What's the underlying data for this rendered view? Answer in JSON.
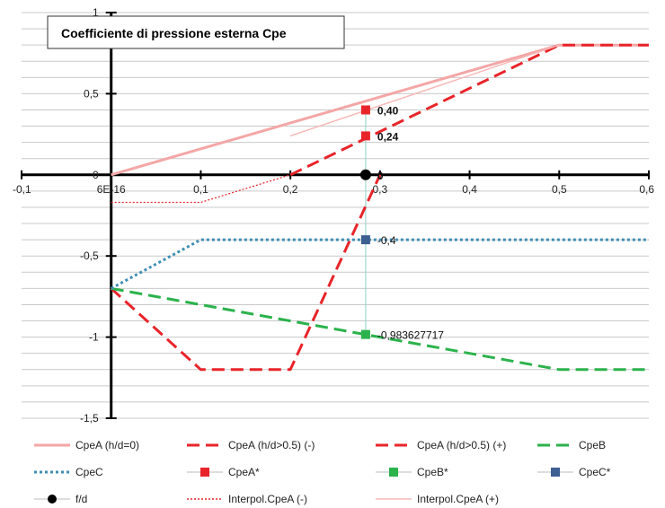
{
  "chart_data": {
    "type": "line",
    "title": "Coefficiente  di pressione esterna Cpe",
    "xlim": [
      -0.1,
      0.6
    ],
    "ylim": [
      -1.5,
      1
    ],
    "x_ticks": [
      {
        "value": -0.1,
        "label": "-0,1"
      },
      {
        "value": 0,
        "label": "6E-16"
      },
      {
        "value": 0.1,
        "label": "0,1"
      },
      {
        "value": 0.2,
        "label": "0,2"
      },
      {
        "value": 0.3,
        "label": "0,3"
      },
      {
        "value": 0.4,
        "label": "0,4"
      },
      {
        "value": 0.5,
        "label": "0,5"
      },
      {
        "value": 0.6,
        "label": "0,6"
      }
    ],
    "y_ticks": [
      {
        "value": 1,
        "label": "1"
      },
      {
        "value": 0.5,
        "label": "0,5"
      },
      {
        "value": 0,
        "label": "0"
      },
      {
        "value": -0.5,
        "label": "-0,5"
      },
      {
        "value": -1,
        "label": "-1"
      },
      {
        "value": -1.5,
        "label": "-1,5"
      }
    ],
    "grid": "horizontal",
    "legend_position": "bottom",
    "series": [
      {
        "name": "CpeA (h/d=0)",
        "style": "solid",
        "color": "#f4a6a6",
        "width": 3,
        "x": [
          0,
          0.5,
          0.6
        ],
        "y": [
          0,
          0.8,
          0.8
        ]
      },
      {
        "name": "CpeA (h/d>0.5) (-)",
        "style": "dashed",
        "color": "#e8242a",
        "width": 3,
        "x": [
          0,
          0.1,
          0.2,
          0.3
        ],
        "y": [
          -0.7,
          -1.2,
          -1.2,
          0
        ]
      },
      {
        "name": "CpeA (h/d>0.5) (+)",
        "style": "dashed",
        "color": "#e8242a",
        "width": 3,
        "x": [
          0.2,
          0.5,
          0.6
        ],
        "y": [
          0,
          0.8,
          0.8
        ]
      },
      {
        "name": "CpeB",
        "style": "dashed",
        "color": "#2bb24c",
        "width": 3,
        "x": [
          0,
          0.5,
          0.6
        ],
        "y": [
          -0.7,
          -1.2,
          -1.2
        ]
      },
      {
        "name": "CpeC",
        "style": "dotted",
        "color": "#3f8fb4",
        "width": 3,
        "x": [
          0,
          0.1,
          0.6
        ],
        "y": [
          -0.7,
          -0.4,
          -0.4
        ]
      },
      {
        "name": "CpeA*",
        "style": "marker",
        "color": "#e8242a",
        "marker": "square",
        "x": [
          0.284,
          0.284
        ],
        "y": [
          0.4,
          0.24
        ],
        "data_labels": [
          "0,40",
          "0,24"
        ]
      },
      {
        "name": "CpeB*",
        "style": "marker",
        "color": "#2bb24c",
        "marker": "square",
        "x": [
          0.284
        ],
        "y": [
          -0.983627717
        ],
        "data_labels": [
          "-0,983627717"
        ]
      },
      {
        "name": "CpeC*",
        "style": "marker",
        "color": "#3d5f91",
        "marker": "square",
        "x": [
          0.284
        ],
        "y": [
          -0.4
        ],
        "data_labels": [
          "-0,4"
        ]
      },
      {
        "name": "f/d",
        "style": "marker",
        "color": "#000000",
        "marker": "circle",
        "x": [
          0.284
        ],
        "y": [
          0
        ],
        "data_labels": [
          "0"
        ]
      },
      {
        "name": "Interpol.CpeA (-)",
        "style": "dotted-thin",
        "color": "#e8242a",
        "width": 1.2,
        "x": [
          0,
          0.1,
          0.2
        ],
        "y": [
          -0.17,
          -0.17,
          0
        ]
      },
      {
        "name": "Interpol.CpeA (+)",
        "style": "solid-thin",
        "color": "#f7b8b8",
        "width": 1.5,
        "x": [
          0.2,
          0.5
        ],
        "y": [
          0.24,
          0.8
        ]
      }
    ],
    "reference_line": {
      "x": 0.284,
      "y_from": -0.983627717,
      "y_to": 0.4,
      "color": "#8fd0c4"
    }
  },
  "legend": [
    {
      "label": "CpeA (h/d=0)",
      "style": "solid",
      "color": "#f4a6a6"
    },
    {
      "label": "CpeA (h/d>0.5) (-)",
      "style": "dashed",
      "color": "#e8242a"
    },
    {
      "label": "CpeA (h/d>0.5) (+)",
      "style": "dashed",
      "color": "#e8242a"
    },
    {
      "label": "CpeB",
      "style": "dashed",
      "color": "#2bb24c"
    },
    {
      "label": "CpeC",
      "style": "dotted",
      "color": "#3f8fb4"
    },
    {
      "label": "CpeA*",
      "style": "marker-square",
      "color": "#e8242a"
    },
    {
      "label": "CpeB*",
      "style": "marker-square",
      "color": "#2bb24c"
    },
    {
      "label": "CpeC*",
      "style": "marker-square",
      "color": "#3d5f91"
    },
    {
      "label": "f/d",
      "style": "marker-circle",
      "color": "#000000"
    },
    {
      "label": "Interpol.CpeA (-)",
      "style": "dotted-thin",
      "color": "#e8242a"
    },
    {
      "label": "Interpol.CpeA (+)",
      "style": "solid-thin",
      "color": "#f7b8b8"
    }
  ]
}
